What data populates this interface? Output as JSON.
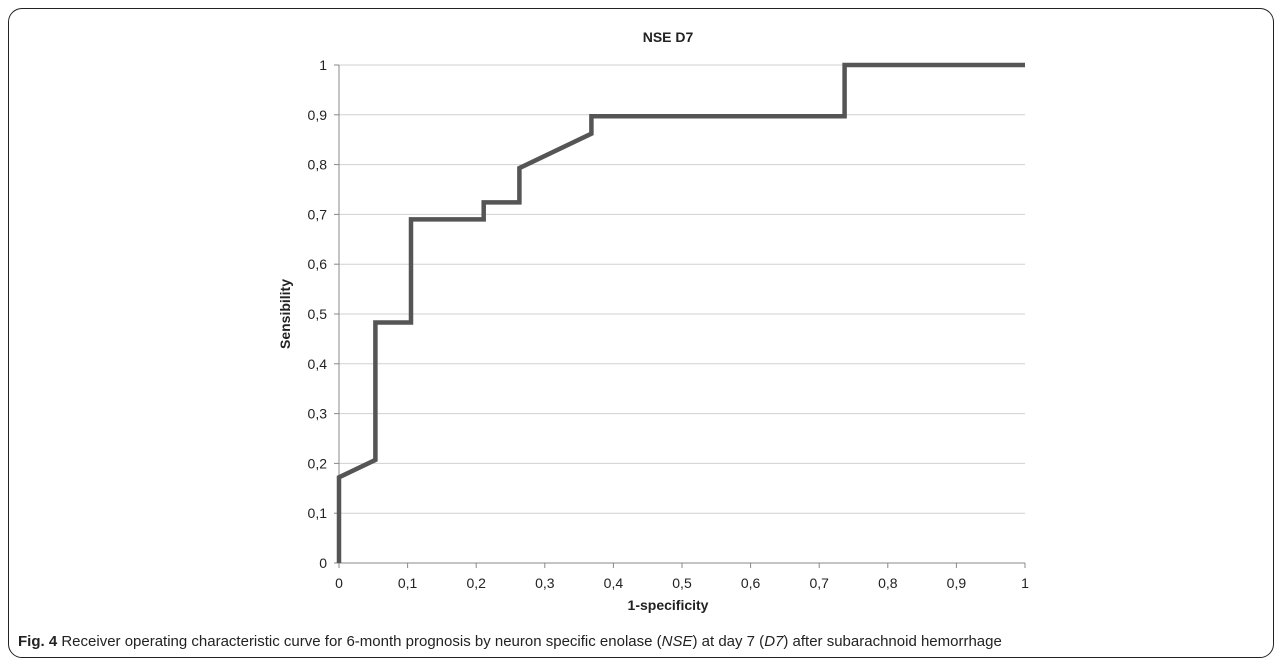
{
  "chart_data": {
    "type": "line",
    "title": "NSE D7",
    "xlabel": "1-specificity",
    "ylabel": "Sensibility",
    "xlim": [
      0,
      1
    ],
    "ylim": [
      0,
      1
    ],
    "x_ticks": [
      "0",
      "0,1",
      "0,2",
      "0,3",
      "0,4",
      "0,5",
      "0,6",
      "0,7",
      "0,8",
      "0,9",
      "1"
    ],
    "y_ticks": [
      "0",
      "0,1",
      "0,2",
      "0,3",
      "0,4",
      "0,5",
      "0,6",
      "0,7",
      "0,8",
      "0,9",
      "1"
    ],
    "grid": "horizontal",
    "line_color": "#555555",
    "series": [
      {
        "points": [
          [
            0,
            0
          ],
          [
            0,
            0.172
          ],
          [
            0.053,
            0.207
          ],
          [
            0.053,
            0.483
          ],
          [
            0.105,
            0.483
          ],
          [
            0.105,
            0.69
          ],
          [
            0.211,
            0.69
          ],
          [
            0.211,
            0.724
          ],
          [
            0.263,
            0.724
          ],
          [
            0.263,
            0.793
          ],
          [
            0.368,
            0.862
          ],
          [
            0.368,
            0.897
          ],
          [
            0.421,
            0.897
          ],
          [
            0.737,
            0.897
          ],
          [
            0.737,
            1.0
          ],
          [
            1.0,
            1.0
          ]
        ]
      }
    ]
  },
  "caption": {
    "label": "Fig. 4",
    "text_before": " Receiver operating characteristic curve for 6-month prognosis by neuron specific enolase (",
    "abbr1": "NSE",
    "text_middle": ") at day 7 (",
    "abbr2": "D7",
    "text_after": ") after subarachnoid hemorrhage"
  }
}
